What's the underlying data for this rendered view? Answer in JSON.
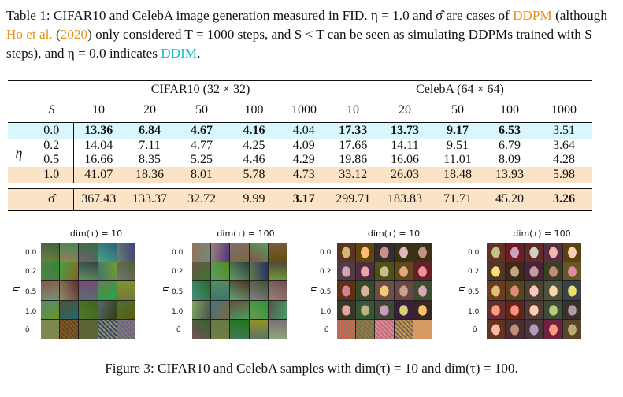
{
  "table_caption": {
    "p1": "Table 1: CIFAR10 and CelebA image generation measured in FID.",
    "p2": "η = 1.0 and σ̂ are cases of",
    "ddpm": "DDPM",
    "p3": " (although ",
    "ho": "Ho et al.",
    "p4": " (",
    "year": "2020",
    "p5": ") only considered T = 1000 steps, and S < T can be seen as simulating DDPMs trained with S steps), and η = 0.0 indicates ",
    "ddim": "DDIM",
    "p6": "."
  },
  "table": {
    "group_cifar": "CIFAR10 (32 × 32)",
    "group_celeba": "CelebA (64 × 64)",
    "s_label": "S",
    "eta_label": "η",
    "steps": [
      "10",
      "20",
      "50",
      "100",
      "1000"
    ],
    "rows": [
      {
        "eta": "0.0",
        "cifar": [
          "13.36",
          "6.84",
          "4.67",
          "4.16",
          "4.04"
        ],
        "celeba": [
          "17.33",
          "13.73",
          "9.17",
          "6.53",
          "3.51"
        ]
      },
      {
        "eta": "0.2",
        "cifar": [
          "14.04",
          "7.11",
          "4.77",
          "4.25",
          "4.09"
        ],
        "celeba": [
          "17.66",
          "14.11",
          "9.51",
          "6.79",
          "3.64"
        ]
      },
      {
        "eta": "0.5",
        "cifar": [
          "16.66",
          "8.35",
          "5.25",
          "4.46",
          "4.29"
        ],
        "celeba": [
          "19.86",
          "16.06",
          "11.01",
          "8.09",
          "4.28"
        ]
      },
      {
        "eta": "1.0",
        "cifar": [
          "41.07",
          "18.36",
          "8.01",
          "5.78",
          "4.73"
        ],
        "celeba": [
          "33.12",
          "26.03",
          "18.48",
          "13.93",
          "5.98"
        ]
      },
      {
        "eta": "σ̂",
        "cifar": [
          "367.43",
          "133.37",
          "32.72",
          "9.99",
          "3.17"
        ],
        "celeba": [
          "299.71",
          "183.83",
          "71.71",
          "45.20",
          "3.26"
        ]
      }
    ]
  },
  "figures": {
    "titles": [
      "dim(τ) = 10",
      "dim(τ) = 100",
      "dim(τ) = 10",
      "dim(τ) = 100"
    ],
    "row_labels": [
      "0.0",
      "0.2",
      "0.5",
      "1.0",
      "σ̂"
    ],
    "eta_axis": "η",
    "colors_cifar": "#6f7a5a",
    "colors_celeba": "#b88a70"
  },
  "figure_caption": "Figure 3: CIFAR10 and CelebA samples with dim(τ) = 10 and dim(τ) = 100."
}
